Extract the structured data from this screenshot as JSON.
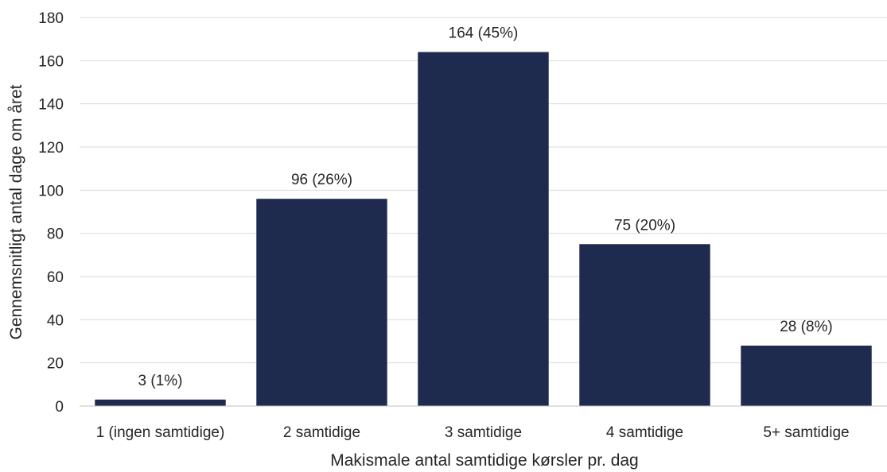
{
  "chart_data": {
    "type": "bar",
    "categories": [
      "1 (ingen samtidige)",
      "2 samtidige",
      "3 samtidige",
      "4 samtidige",
      "5+ samtidige"
    ],
    "values": [
      3,
      96,
      164,
      75,
      28
    ],
    "data_labels": [
      "3 (1%)",
      "96 (26%)",
      "164 (45%)",
      "75 (20%)",
      "28 (8%)"
    ],
    "title": "",
    "xlabel": "Makismale antal samtidige kørsler pr. dag",
    "ylabel": "Gennemsnitligt antal dage om året",
    "ylim": [
      0,
      180
    ],
    "yticks": [
      0,
      20,
      40,
      60,
      80,
      100,
      120,
      140,
      160,
      180
    ],
    "grid": true,
    "bar_color": "#1f2a4f"
  }
}
